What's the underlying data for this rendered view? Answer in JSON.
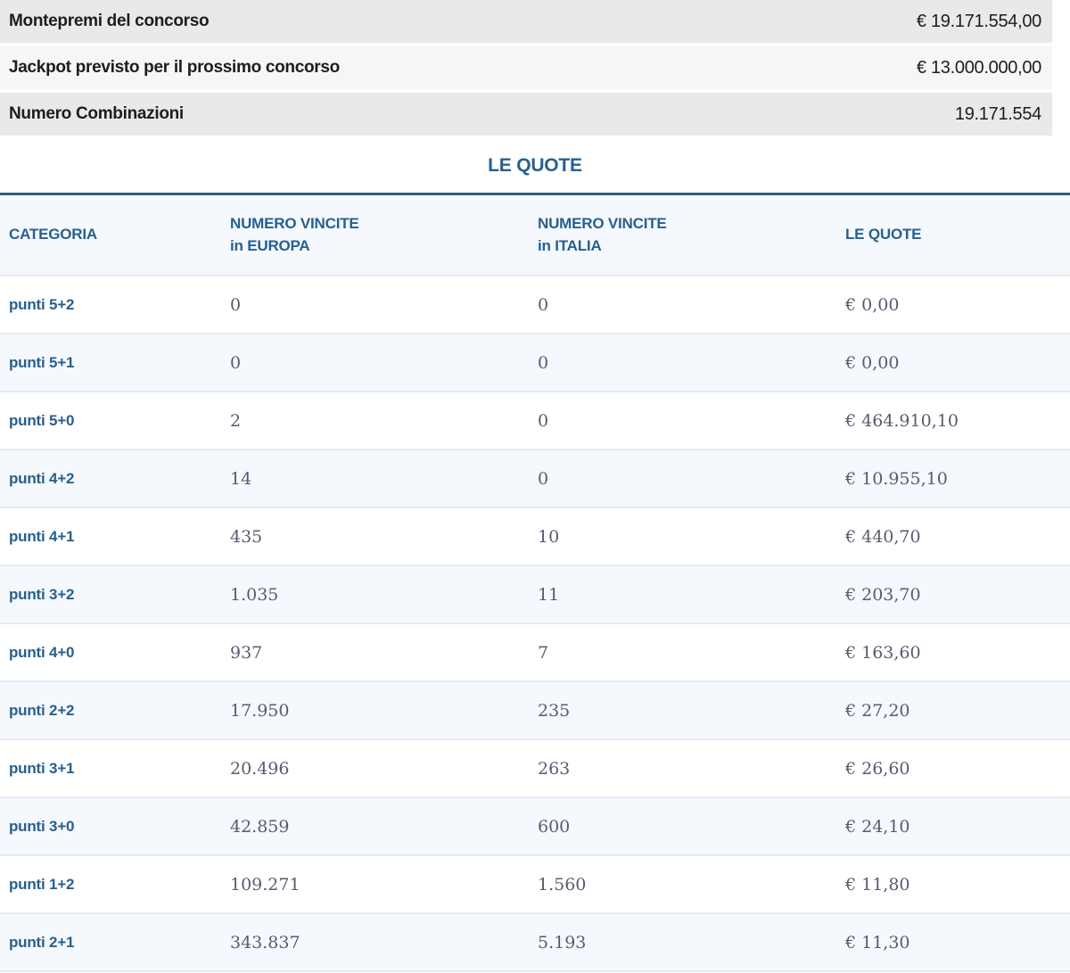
{
  "summary": {
    "rows": [
      {
        "label": "Montepremi del concorso",
        "value": "€ 19.171.554,00"
      },
      {
        "label": "Jackpot previsto per il prossimo concorso",
        "value": "€ 13.000.000,00"
      },
      {
        "label": "Numero Combinazioni",
        "value": "19.171.554"
      }
    ]
  },
  "section_title": "LE QUOTE",
  "table": {
    "headers": {
      "categoria": "CATEGORIA",
      "europa_line1": "NUMERO VINCITE",
      "europa_line2": "in EUROPA",
      "italia_line1": "NUMERO VINCITE",
      "italia_line2": "in ITALIA",
      "quote": "LE QUOTE"
    },
    "rows": [
      {
        "category": "punti 5+2",
        "europe": "0",
        "italy": "0",
        "quote": "€ 0,00"
      },
      {
        "category": "punti 5+1",
        "europe": "0",
        "italy": "0",
        "quote": "€ 0,00"
      },
      {
        "category": "punti 5+0",
        "europe": "2",
        "italy": "0",
        "quote": "€ 464.910,10"
      },
      {
        "category": "punti 4+2",
        "europe": "14",
        "italy": "0",
        "quote": "€ 10.955,10"
      },
      {
        "category": "punti 4+1",
        "europe": "435",
        "italy": "10",
        "quote": "€ 440,70"
      },
      {
        "category": "punti 3+2",
        "europe": "1.035",
        "italy": "11",
        "quote": "€ 203,70"
      },
      {
        "category": "punti 4+0",
        "europe": "937",
        "italy": "7",
        "quote": "€ 163,60"
      },
      {
        "category": "punti 2+2",
        "europe": "17.950",
        "italy": "235",
        "quote": "€ 27,20"
      },
      {
        "category": "punti 3+1",
        "europe": "20.496",
        "italy": "263",
        "quote": "€ 26,60"
      },
      {
        "category": "punti 3+0",
        "europe": "42.859",
        "italy": "600",
        "quote": "€ 24,10"
      },
      {
        "category": "punti 1+2",
        "europe": "109.271",
        "italy": "1.560",
        "quote": "€ 11,80"
      },
      {
        "category": "punti 2+1",
        "europe": "343.837",
        "italy": "5.193",
        "quote": "€ 11,30"
      }
    ]
  },
  "colors": {
    "accent_blue": "#26608f",
    "divider_blue": "#2d5f87",
    "row_tint": "#f5f8fc",
    "summary_gray_dark": "#e9e9e9",
    "summary_gray_light": "#f6f6f6",
    "number_ink": "#585b70"
  }
}
